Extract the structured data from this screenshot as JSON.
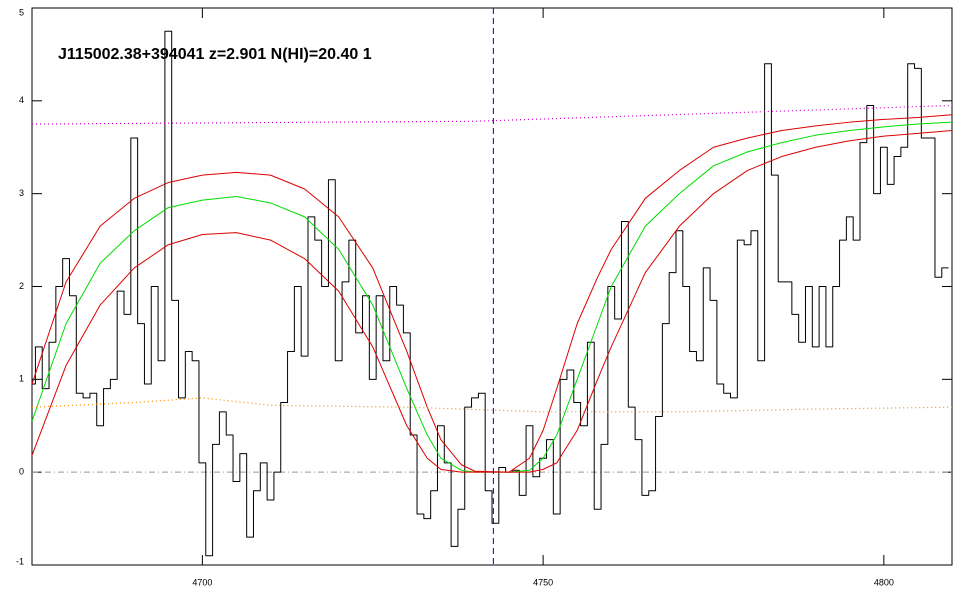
{
  "chart_data": {
    "type": "line",
    "title": "J115002.38+394041 z=2.901 N(HI)=20.40 1",
    "xlim": [
      4675,
      4810
    ],
    "ylim": [
      -1,
      5
    ],
    "xticks": [
      4700,
      4750,
      4800
    ],
    "yticks": [
      -1,
      0,
      1,
      2,
      3,
      4,
      5
    ],
    "series": [
      {
        "color": "#000000",
        "drawstyle": "steps-mid",
        "linestyle": "solid",
        "x": [
          4675,
          4676,
          4677,
          4678,
          4679,
          4680,
          4681,
          4682,
          4683,
          4684,
          4685,
          4686,
          4687,
          4688,
          4689,
          4690,
          4691,
          4692,
          4693,
          4694,
          4695,
          4696,
          4697,
          4698,
          4699,
          4700,
          4701,
          4702,
          4703,
          4704,
          4705,
          4706,
          4707,
          4708,
          4709,
          4710,
          4711,
          4712,
          4713,
          4714,
          4715,
          4716,
          4717,
          4718,
          4719,
          4720,
          4721,
          4722,
          4723,
          4724,
          4725,
          4726,
          4727,
          4728,
          4729,
          4730,
          4731,
          4732,
          4733,
          4734,
          4735,
          4736,
          4737,
          4738,
          4739,
          4740,
          4741,
          4742,
          4743,
          4744,
          4745,
          4746,
          4747,
          4748,
          4749,
          4750,
          4751,
          4752,
          4753,
          4754,
          4755,
          4756,
          4757,
          4758,
          4759,
          4760,
          4761,
          4762,
          4763,
          4764,
          4765,
          4766,
          4767,
          4768,
          4769,
          4770,
          4771,
          4772,
          4773,
          4774,
          4775,
          4776,
          4777,
          4778,
          4779,
          4780,
          4781,
          4782,
          4783,
          4784,
          4785,
          4786,
          4787,
          4788,
          4789,
          4790,
          4791,
          4792,
          4793,
          4794,
          4795,
          4796,
          4797,
          4798,
          4799,
          4800,
          4801,
          4802,
          4803,
          4804,
          4805,
          4806,
          4807,
          4808,
          4809
        ],
        "values": [
          0.95,
          1.35,
          0.9,
          1.4,
          2.0,
          2.3,
          1.9,
          0.85,
          0.8,
          0.85,
          0.5,
          0.9,
          1.0,
          1.95,
          1.7,
          3.6,
          1.6,
          0.95,
          2.0,
          1.2,
          4.75,
          1.85,
          0.8,
          1.3,
          1.2,
          0.1,
          -0.9,
          0.3,
          0.65,
          0.4,
          -0.1,
          0.2,
          -0.7,
          -0.2,
          0.1,
          -0.3,
          0.0,
          0.75,
          1.3,
          2.0,
          1.25,
          2.75,
          2.5,
          2.0,
          3.15,
          1.2,
          2.05,
          2.5,
          1.5,
          1.9,
          1.0,
          1.9,
          1.2,
          2.0,
          1.8,
          1.5,
          0.4,
          -0.45,
          -0.5,
          -0.2,
          0.5,
          0.1,
          -0.8,
          -0.4,
          0.7,
          0.8,
          0.85,
          -0.2,
          -0.55,
          0.05,
          0.0,
          0.02,
          -0.25,
          0.5,
          -0.05,
          0.15,
          0.35,
          -0.45,
          1.0,
          1.1,
          0.75,
          0.5,
          1.4,
          -0.4,
          0.3,
          2.0,
          1.65,
          2.7,
          0.7,
          0.35,
          -0.25,
          -0.2,
          0.6,
          1.6,
          2.15,
          2.6,
          2.0,
          1.3,
          1.2,
          2.2,
          1.85,
          0.95,
          0.85,
          0.8,
          2.5,
          2.45,
          2.6,
          1.2,
          4.4,
          3.2,
          2.05,
          2.05,
          1.7,
          1.4,
          2.0,
          1.35,
          2.0,
          1.35,
          2.0,
          2.5,
          2.75,
          2.5,
          3.55,
          3.95,
          3.0,
          3.5,
          3.1,
          3.4,
          3.5,
          4.4,
          4.35,
          3.6,
          3.6,
          2.1,
          2.2
        ]
      },
      {
        "color": "#00dd00",
        "drawstyle": "smooth",
        "linestyle": "solid",
        "x": [
          4675,
          4680,
          4685,
          4690,
          4695,
          4700,
          4705,
          4710,
          4715,
          4720,
          4725,
          4730,
          4733,
          4735,
          4738,
          4740,
          4745,
          4748,
          4750,
          4752,
          4755,
          4758,
          4760,
          4765,
          4770,
          4775,
          4780,
          4785,
          4790,
          4795,
          4800,
          4805,
          4810
        ],
        "values": [
          0.55,
          1.6,
          2.25,
          2.6,
          2.85,
          2.93,
          2.97,
          2.9,
          2.75,
          2.4,
          1.8,
          0.9,
          0.4,
          0.15,
          0.02,
          0,
          0,
          0.02,
          0.15,
          0.4,
          1.0,
          1.6,
          2.0,
          2.65,
          3.0,
          3.3,
          3.45,
          3.55,
          3.63,
          3.68,
          3.72,
          3.75,
          3.77
        ]
      },
      {
        "color": "#dd0000",
        "drawstyle": "smooth",
        "linestyle": "solid",
        "x": [
          4675,
          4680,
          4685,
          4690,
          4695,
          4700,
          4705,
          4710,
          4715,
          4720,
          4725,
          4730,
          4733,
          4735,
          4738,
          4740,
          4745,
          4748,
          4750,
          4752,
          4755,
          4758,
          4760,
          4765,
          4770,
          4775,
          4780,
          4785,
          4790,
          4795,
          4800,
          4805,
          4810
        ],
        "values": [
          0.95,
          2.05,
          2.65,
          2.95,
          3.12,
          3.2,
          3.23,
          3.2,
          3.05,
          2.75,
          2.2,
          1.3,
          0.7,
          0.35,
          0.08,
          0.01,
          0,
          0.15,
          0.45,
          0.9,
          1.6,
          2.1,
          2.4,
          2.95,
          3.25,
          3.5,
          3.6,
          3.68,
          3.73,
          3.77,
          3.8,
          3.82,
          3.85
        ]
      },
      {
        "color": "#dd0000",
        "drawstyle": "smooth",
        "linestyle": "solid",
        "x": [
          4675,
          4680,
          4685,
          4690,
          4695,
          4700,
          4705,
          4710,
          4715,
          4720,
          4725,
          4730,
          4733,
          4735,
          4738,
          4740,
          4745,
          4748,
          4750,
          4752,
          4755,
          4758,
          4760,
          4765,
          4770,
          4775,
          4780,
          4785,
          4790,
          4795,
          4800,
          4805,
          4810
        ],
        "values": [
          0.18,
          1.15,
          1.8,
          2.2,
          2.45,
          2.56,
          2.58,
          2.5,
          2.3,
          1.95,
          1.35,
          0.5,
          0.15,
          0.03,
          0,
          0,
          0,
          0,
          0.03,
          0.1,
          0.45,
          1.0,
          1.35,
          2.15,
          2.65,
          3.0,
          3.25,
          3.4,
          3.5,
          3.57,
          3.62,
          3.65,
          3.68
        ]
      },
      {
        "color": "#cc00cc",
        "drawstyle": "smooth",
        "linestyle": "dotted",
        "x": [
          4675,
          4740,
          4810
        ],
        "values": [
          3.75,
          3.78,
          3.95
        ]
      },
      {
        "color": "#ff8c00",
        "drawstyle": "smooth",
        "linestyle": "dotted",
        "x": [
          4675,
          4690,
          4700,
          4710,
          4730,
          4750,
          4770,
          4790,
          4810
        ],
        "values": [
          0.7,
          0.75,
          0.8,
          0.72,
          0.7,
          0.65,
          0.65,
          0.68,
          0.7
        ]
      }
    ],
    "vlines": [
      {
        "x": 4742.7,
        "color": "#0000cc",
        "linestyle": "dashed"
      }
    ],
    "hlines": [
      {
        "y": 0,
        "color": "#999999",
        "linestyle": "dashdot"
      }
    ]
  }
}
